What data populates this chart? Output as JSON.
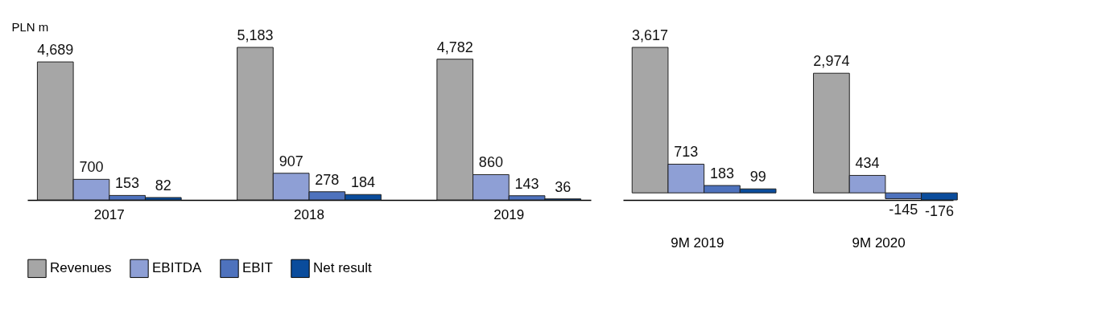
{
  "chart_data": [
    {
      "type": "bar",
      "ylabel": "PLN m",
      "categories": [
        "2017",
        "2018",
        "2019"
      ],
      "legend": "bottom",
      "series": [
        {
          "name": "Revenues",
          "color": "#a6a6a6",
          "values": [
            4689,
            5183,
            4782
          ],
          "value_labels": [
            "4,689",
            "5,183",
            "4,782"
          ]
        },
        {
          "name": "EBITDA",
          "color": "#8e9fd5",
          "values": [
            700,
            907,
            860
          ],
          "value_labels": [
            "700",
            "907",
            "860"
          ]
        },
        {
          "name": "EBIT",
          "color": "#4e72bd",
          "values": [
            153,
            278,
            143
          ],
          "value_labels": [
            "153",
            "278",
            "143"
          ]
        },
        {
          "name": "Net result",
          "color": "#0a4c9c",
          "values": [
            82,
            184,
            36
          ],
          "value_labels": [
            "82",
            "184",
            "36"
          ]
        }
      ]
    },
    {
      "type": "bar",
      "categories": [
        "9M 2019",
        "9M 2020"
      ],
      "series": [
        {
          "name": "Revenues",
          "color": "#a6a6a6",
          "values": [
            3617,
            2974
          ],
          "value_labels": [
            "3,617",
            "2,974"
          ]
        },
        {
          "name": "EBITDA",
          "color": "#8e9fd5",
          "values": [
            713,
            434
          ],
          "value_labels": [
            "713",
            "434"
          ]
        },
        {
          "name": "EBIT",
          "color": "#4e72bd",
          "values": [
            183,
            -145
          ],
          "value_labels": [
            "183",
            "-145"
          ]
        },
        {
          "name": "Net result",
          "color": "#0a4c9c",
          "values": [
            99,
            -176
          ],
          "value_labels": [
            "99",
            "-176"
          ]
        }
      ]
    }
  ]
}
